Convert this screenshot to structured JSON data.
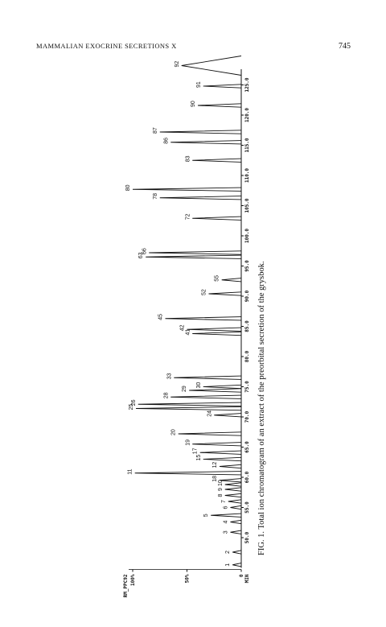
{
  "header": {
    "running_title": "MAMMALIAN EXOCRINE SECRETIONS X",
    "page_number": "745"
  },
  "chart_data": {
    "type": "chromatogram",
    "sample": "RM_PPC92",
    "x_label": "MIN",
    "color": "#111111",
    "x": [
      45.5,
      47.6,
      50.9,
      52.6,
      53.7,
      55,
      56,
      57,
      58,
      58.8,
      59.5,
      60.7,
      61.8,
      63,
      64.1,
      65.5,
      67.2,
      70.3,
      71.4,
      72.1,
      73.3,
      74.4,
      75,
      76.5,
      83.8,
      84.5,
      86.3,
      90.4,
      92.7,
      96.5,
      97.2,
      102.9,
      106.3,
      107.7,
      112.5,
      115.5,
      117.2,
      121.6,
      124.8,
      128.2
    ],
    "values": [
      8,
      8,
      10,
      10,
      28,
      10,
      12,
      15,
      15,
      15,
      20,
      98,
      20,
      35,
      38,
      45,
      58,
      25,
      97,
      95,
      65,
      48,
      35,
      62,
      45,
      50,
      70,
      30,
      18,
      88,
      85,
      45,
      75,
      100,
      45,
      65,
      75,
      40,
      35,
      55
    ],
    "peak_labels": [
      "1",
      "2",
      "3",
      "4",
      "5",
      "6",
      "7",
      "8",
      "9",
      "10",
      "18",
      "11",
      "12",
      "15",
      "17",
      "19",
      "20",
      "24",
      "25",
      "26",
      "28",
      "29",
      "30",
      "33",
      "41",
      "42",
      "45",
      "52",
      "55",
      "63",
      "66",
      "72",
      "78",
      "80",
      "83",
      "86",
      "87",
      "90",
      "91",
      "92"
    ],
    "xlim": [
      45,
      130
    ],
    "xticks": [
      {
        "value": 50,
        "label": "50.0"
      },
      {
        "value": 55,
        "label": "55.0"
      },
      {
        "value": 60,
        "label": "60.0"
      },
      {
        "value": 65,
        "label": "65.0"
      },
      {
        "value": 70,
        "label": "70.0"
      },
      {
        "value": 75,
        "label": "75.0"
      },
      {
        "value": 80,
        "label": "80.0"
      },
      {
        "value": 85,
        "label": "85.0"
      },
      {
        "value": 90,
        "label": "90.0"
      },
      {
        "value": 95,
        "label": "95.0"
      },
      {
        "value": 100,
        "label": "100.0"
      },
      {
        "value": 105,
        "label": "105.0"
      },
      {
        "value": 110,
        "label": "110.0"
      },
      {
        "value": 115,
        "label": "115.0"
      },
      {
        "value": 120,
        "label": "120.0"
      },
      {
        "value": 125,
        "label": "125.0"
      }
    ],
    "ylim": [
      0,
      100
    ],
    "yticks": [
      0,
      {
        "value": 50,
        "label": "50%"
      },
      {
        "value": 100,
        "label": "100%"
      }
    ]
  },
  "caption": "FIG. 1. Total ion chromatogram of an extract of the preorbital secretion of the grysbok."
}
